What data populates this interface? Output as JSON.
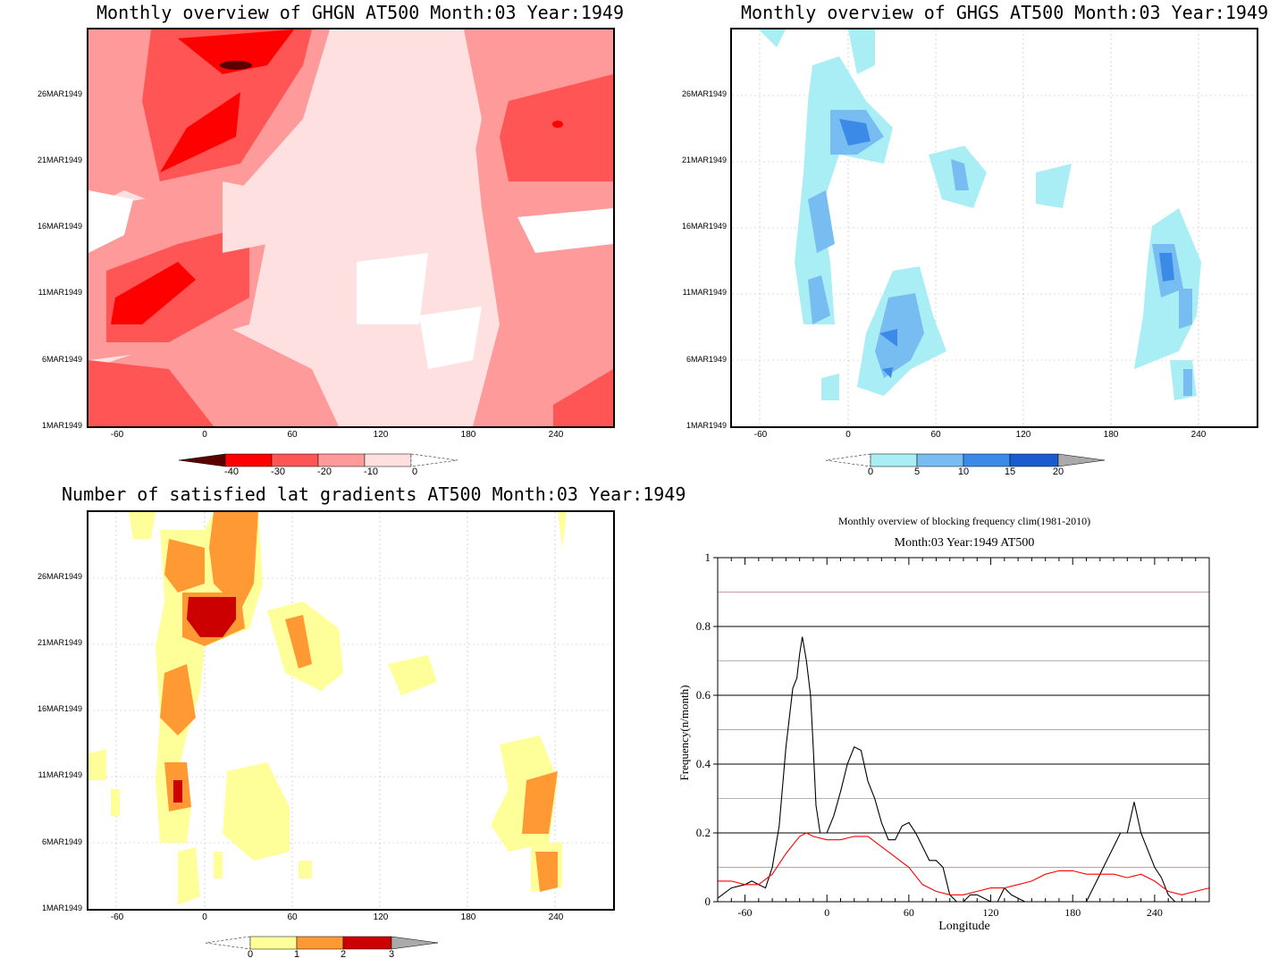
{
  "panels": {
    "ghgn": {
      "title": "Monthly overview of GHGN AT500 Month:03 Year:1949",
      "y_ticks": [
        "26MAR1949",
        "21MAR1949",
        "16MAR1949",
        "11MAR1949",
        "6MAR1949",
        "1MAR1949"
      ],
      "x_ticks": [
        "-60",
        "0",
        "60",
        "120",
        "180",
        "240"
      ],
      "colorbar": [
        "-40",
        "-30",
        "-20",
        "-10",
        "0"
      ],
      "colors": [
        "#5a0000",
        "#ff0000",
        "#ff5555",
        "#ff9a9a",
        "#ffe0e0",
        "#ffffff"
      ]
    },
    "ghgs": {
      "title": "Monthly overview of GHGS AT500 Month:03 Year:1949",
      "y_ticks": [
        "26MAR1949",
        "21MAR1949",
        "16MAR1949",
        "11MAR1949",
        "6MAR1949",
        "1MAR1949"
      ],
      "x_ticks": [
        "-60",
        "0",
        "60",
        "120",
        "180",
        "240"
      ],
      "colorbar": [
        "0",
        "5",
        "10",
        "15",
        "20"
      ],
      "colors": [
        "#aaeef5",
        "#78bdf2",
        "#3c8ae8",
        "#1a5cd0",
        "#aaaaaa"
      ]
    },
    "lat": {
      "title": "Number of satisfied lat gradients AT500 Month:03 Year:1949",
      "y_ticks": [
        "26MAR1949",
        "21MAR1949",
        "16MAR1949",
        "11MAR1949",
        "6MAR1949",
        "1MAR1949"
      ],
      "x_ticks": [
        "-60",
        "0",
        "60",
        "120",
        "180",
        "240"
      ],
      "colorbar": [
        "0",
        "1",
        "2",
        "3"
      ],
      "colors": [
        "#ffff99",
        "#ff9933",
        "#cc0000",
        "#aaaaaa"
      ]
    }
  },
  "chart_data": {
    "type": "line",
    "title": "Monthly overview of blocking frequency clim(1981-2010)",
    "subtitle": "Month:03 Year:1949  AT500",
    "xlabel": "Longitude",
    "ylabel": "Frequency(n/month)",
    "xlim": [
      -80,
      280
    ],
    "ylim": [
      0,
      1
    ],
    "x_ticks": [
      "-60",
      "0",
      "60",
      "120",
      "180",
      "240"
    ],
    "y_ticks": [
      "0",
      "0.2",
      "0.4",
      "0.6",
      "0.8",
      "1"
    ],
    "series": [
      {
        "color": "#000000",
        "x": [
          -80,
          -70,
          -60,
          -55,
          -50,
          -45,
          -40,
          -35,
          -30,
          -25,
          -22,
          -20,
          -18,
          -15,
          -12,
          -10,
          -8,
          -5,
          0,
          5,
          10,
          15,
          20,
          25,
          30,
          35,
          40,
          45,
          50,
          55,
          60,
          65,
          70,
          75,
          80,
          85,
          90,
          95,
          100,
          105,
          110,
          115,
          120,
          125,
          130,
          135,
          140,
          145,
          150,
          160,
          170,
          180,
          190,
          200,
          205,
          210,
          215,
          220,
          225,
          230,
          235,
          240,
          245,
          250,
          255,
          260,
          270,
          280
        ],
        "y": [
          0.01,
          0.04,
          0.05,
          0.06,
          0.05,
          0.04,
          0.1,
          0.22,
          0.45,
          0.62,
          0.65,
          0.72,
          0.77,
          0.7,
          0.6,
          0.45,
          0.28,
          0.2,
          0.2,
          0.25,
          0.32,
          0.4,
          0.45,
          0.44,
          0.35,
          0.3,
          0.23,
          0.18,
          0.18,
          0.22,
          0.23,
          0.2,
          0.16,
          0.12,
          0.12,
          0.1,
          0.02,
          0.0,
          0.0,
          0.02,
          0.02,
          0.01,
          0.0,
          0.0,
          0.04,
          0.02,
          0.01,
          0.0,
          0.0,
          0.0,
          0.0,
          0.0,
          0.0,
          0.08,
          0.12,
          0.16,
          0.2,
          0.2,
          0.29,
          0.2,
          0.15,
          0.1,
          0.07,
          0.02,
          0.0,
          0.0,
          0.0,
          0.0
        ]
      },
      {
        "color": "#ff0000",
        "x": [
          -80,
          -70,
          -60,
          -50,
          -40,
          -30,
          -20,
          -15,
          -10,
          0,
          10,
          20,
          30,
          40,
          50,
          60,
          70,
          80,
          90,
          100,
          110,
          120,
          130,
          140,
          150,
          160,
          170,
          180,
          190,
          200,
          210,
          220,
          230,
          240,
          250,
          260,
          270,
          280
        ],
        "y": [
          0.06,
          0.06,
          0.05,
          0.05,
          0.08,
          0.14,
          0.19,
          0.2,
          0.19,
          0.18,
          0.18,
          0.19,
          0.19,
          0.16,
          0.13,
          0.1,
          0.05,
          0.03,
          0.02,
          0.02,
          0.03,
          0.04,
          0.04,
          0.05,
          0.06,
          0.08,
          0.09,
          0.09,
          0.08,
          0.08,
          0.08,
          0.07,
          0.08,
          0.06,
          0.03,
          0.02,
          0.03,
          0.04
        ]
      }
    ]
  }
}
